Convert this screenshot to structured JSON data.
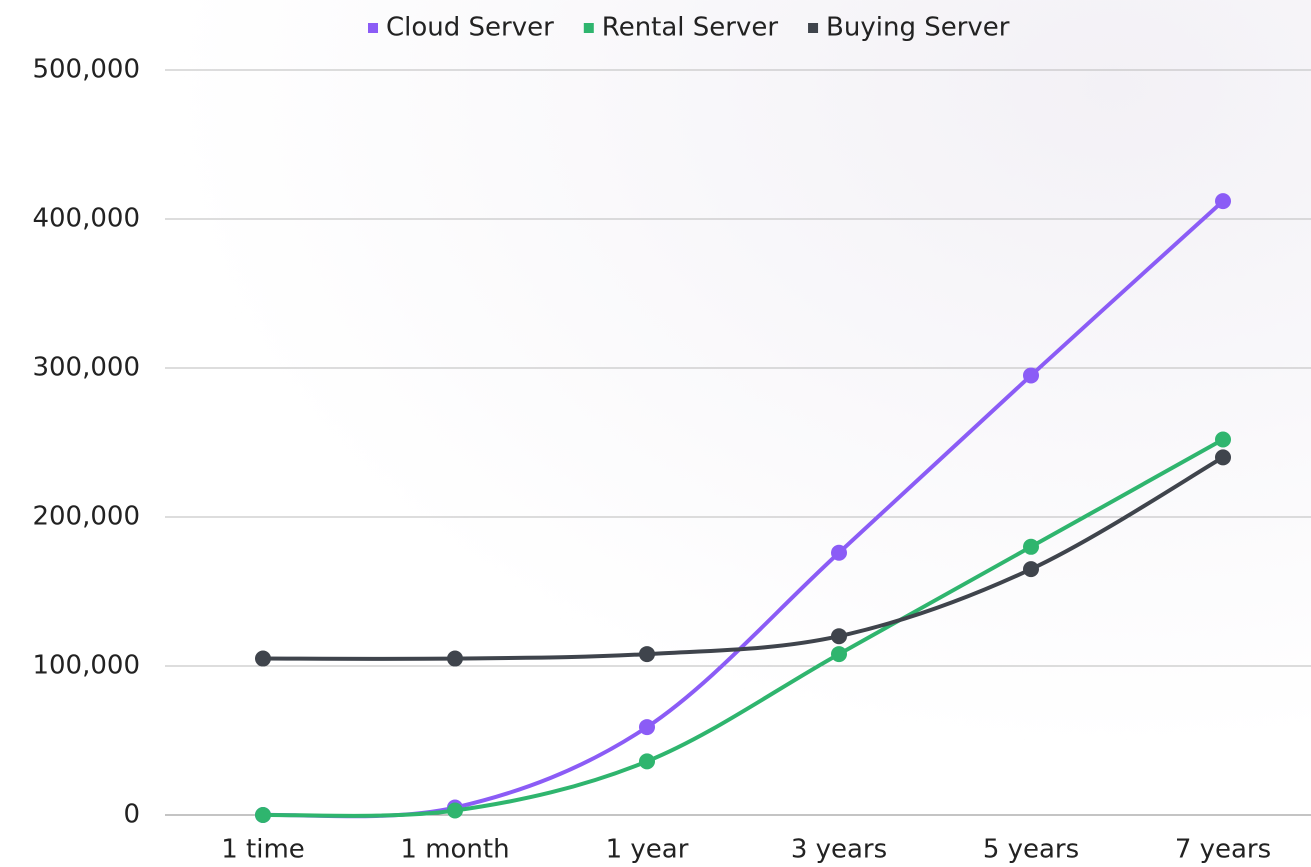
{
  "chart_data": {
    "type": "line",
    "categories": [
      "1 time",
      "1 month",
      "1 year",
      "3 years",
      "5 years",
      "7 years"
    ],
    "series": [
      {
        "name": "Cloud Server",
        "color": "#8b5cf6",
        "values": [
          0,
          5000,
          59000,
          176000,
          295000,
          412000
        ]
      },
      {
        "name": "Rental Server",
        "color": "#2fb56e",
        "values": [
          0,
          3000,
          36000,
          108000,
          180000,
          252000
        ]
      },
      {
        "name": "Buying Server",
        "color": "#3f444c",
        "values": [
          105000,
          105000,
          108000,
          120000,
          165000,
          240000
        ]
      }
    ],
    "ylim": [
      0,
      500000
    ],
    "yticks": [
      0,
      {
        "value": 100000,
        "label": "100,000"
      },
      {
        "value": 200000,
        "label": "200,000"
      },
      {
        "value": 300000,
        "label": "300,000"
      },
      {
        "value": 400000,
        "label": "400,000"
      },
      {
        "value": 500000,
        "label": "500,000"
      }
    ],
    "grid": true,
    "legend": "top",
    "smooth": true
  }
}
